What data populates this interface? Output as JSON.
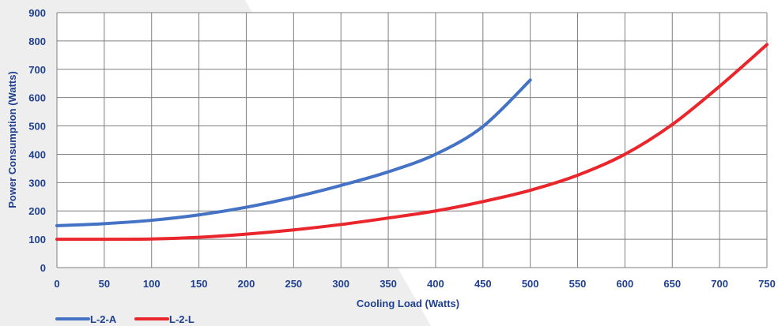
{
  "colors": {
    "text": "#1f3f8f",
    "grid": "#7f7f7f",
    "background": "#ffffff",
    "backdrop": "#eeeeee"
  },
  "chart_data": {
    "type": "line",
    "title": "",
    "xlabel": "Cooling Load  (Watts)",
    "ylabel": "Power Consumption (Watts)",
    "xlim": [
      0,
      750
    ],
    "ylim": [
      0,
      900
    ],
    "xticks": [
      0,
      50,
      100,
      150,
      200,
      250,
      300,
      350,
      400,
      450,
      500,
      550,
      600,
      650,
      700,
      750
    ],
    "yticks": [
      0,
      100,
      200,
      300,
      400,
      500,
      600,
      700,
      800,
      900
    ],
    "grid": true,
    "legend": "bottom-left",
    "series": [
      {
        "name": "L-2-A",
        "color": "#4472c4",
        "x": [
          0,
          50,
          100,
          150,
          200,
          250,
          300,
          350,
          400,
          450,
          500
        ],
        "y": [
          148,
          155,
          167,
          186,
          213,
          248,
          290,
          338,
          400,
          498,
          662
        ]
      },
      {
        "name": "L-2-L",
        "color": "#e8262c",
        "x": [
          0,
          50,
          100,
          150,
          200,
          250,
          300,
          350,
          400,
          450,
          500,
          550,
          600,
          650,
          700,
          750
        ],
        "y": [
          100,
          100,
          101,
          107,
          118,
          133,
          152,
          175,
          200,
          233,
          273,
          326,
          400,
          505,
          640,
          787
        ]
      }
    ]
  }
}
